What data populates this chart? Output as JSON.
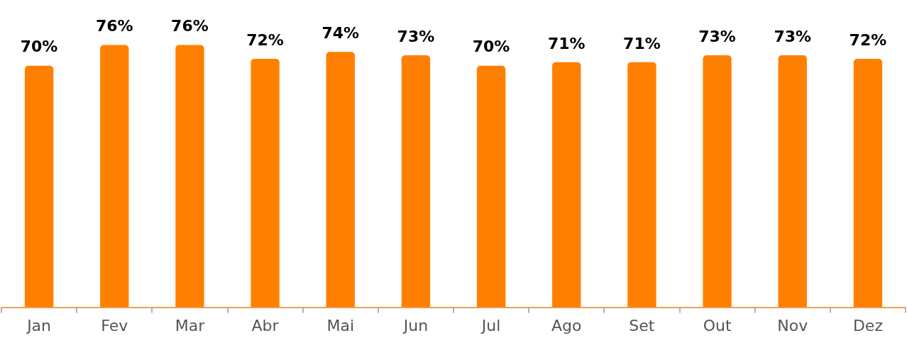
{
  "chart_data": {
    "type": "bar",
    "categories": [
      "Jan",
      "Fev",
      "Mar",
      "Abr",
      "Mai",
      "Jun",
      "Jul",
      "Ago",
      "Set",
      "Out",
      "Nov",
      "Dez"
    ],
    "values": [
      70,
      76,
      76,
      72,
      74,
      73,
      70,
      71,
      71,
      73,
      73,
      72
    ],
    "value_labels": [
      "70%",
      "76%",
      "76%",
      "72%",
      "74%",
      "73%",
      "70%",
      "71%",
      "71%",
      "73%",
      "73%",
      "72%"
    ],
    "color": "#ff7f00",
    "tick_labels": "x"
  }
}
